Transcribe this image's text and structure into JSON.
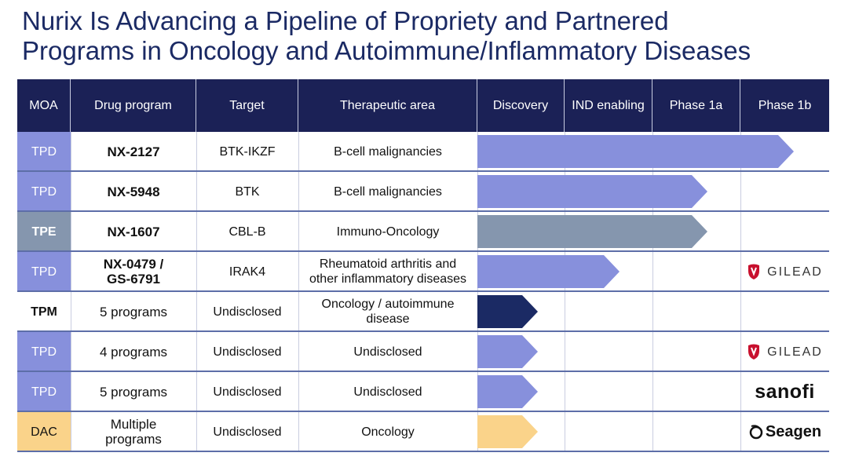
{
  "title": {
    "line1": "Nurix Is Advancing a Pipeline of Propriety and Partnered",
    "line2": "Programs in Oncology and Autoimmune/Inflammatory Diseases"
  },
  "headers": [
    "MOA",
    "Drug program",
    "Target",
    "Therapeutic area",
    "Discovery",
    "IND enabling",
    "Phase 1a",
    "Phase 1b"
  ],
  "colors": {
    "header_bg": "#1b2156",
    "tpd": "#8790dc",
    "tpe": "#8596ae",
    "tpm_arrow": "#1b2a64",
    "dac": "#fad38a",
    "gilead_red": "#c8102e",
    "sanofi_purple": "#7a00e6"
  },
  "rows": [
    {
      "moa": "TPD",
      "program_line1": "NX-2127",
      "program_line2": "",
      "target": "BTK-IKZF",
      "area_line1": "B-cell malignancies",
      "area_line2": "",
      "stage_progress": "Phase 1b",
      "partner": ""
    },
    {
      "moa": "TPD",
      "program_line1": "NX-5948",
      "program_line2": "",
      "target": "BTK",
      "area_line1": "B-cell malignancies",
      "area_line2": "",
      "stage_progress": "Phase 1a",
      "partner": ""
    },
    {
      "moa": "TPE",
      "program_line1": "NX-1607",
      "program_line2": "",
      "target": "CBL-B",
      "area_line1": "Immuno-Oncology",
      "area_line2": "",
      "stage_progress": "Phase 1a",
      "partner": ""
    },
    {
      "moa": "TPD",
      "program_line1": "NX-0479 /",
      "program_line2": "GS-6791",
      "target": "IRAK4",
      "area_line1": "Rheumatoid arthritis  and",
      "area_line2": "other inflammatory diseases",
      "stage_progress": "IND enabling",
      "partner": "GILEAD"
    },
    {
      "moa": "TPM",
      "program_line1": "5 programs",
      "program_line2": "",
      "target": "Undisclosed",
      "area_line1": "Oncology / autoimmune",
      "area_line2": "disease",
      "stage_progress": "Discovery",
      "partner": ""
    },
    {
      "moa": "TPD",
      "program_line1": "4 programs",
      "program_line2": "",
      "target": "Undisclosed",
      "area_line1": "Undisclosed",
      "area_line2": "",
      "stage_progress": "Discovery",
      "partner": "GILEAD"
    },
    {
      "moa": "TPD",
      "program_line1": "5 programs",
      "program_line2": "",
      "target": "Undisclosed",
      "area_line1": "Undisclosed",
      "area_line2": "",
      "stage_progress": "Discovery",
      "partner": "sanofi"
    },
    {
      "moa": "DAC",
      "program_line1": "Multiple",
      "program_line2": "programs",
      "target": "Undisclosed",
      "area_line1": "Oncology",
      "area_line2": "",
      "stage_progress": "Discovery",
      "partner": "Seagen"
    }
  ],
  "icons": {
    "gilead": "gilead-logo-icon",
    "sanofi": "sanofi-logo-icon",
    "seagen": "seagen-logo-icon"
  }
}
